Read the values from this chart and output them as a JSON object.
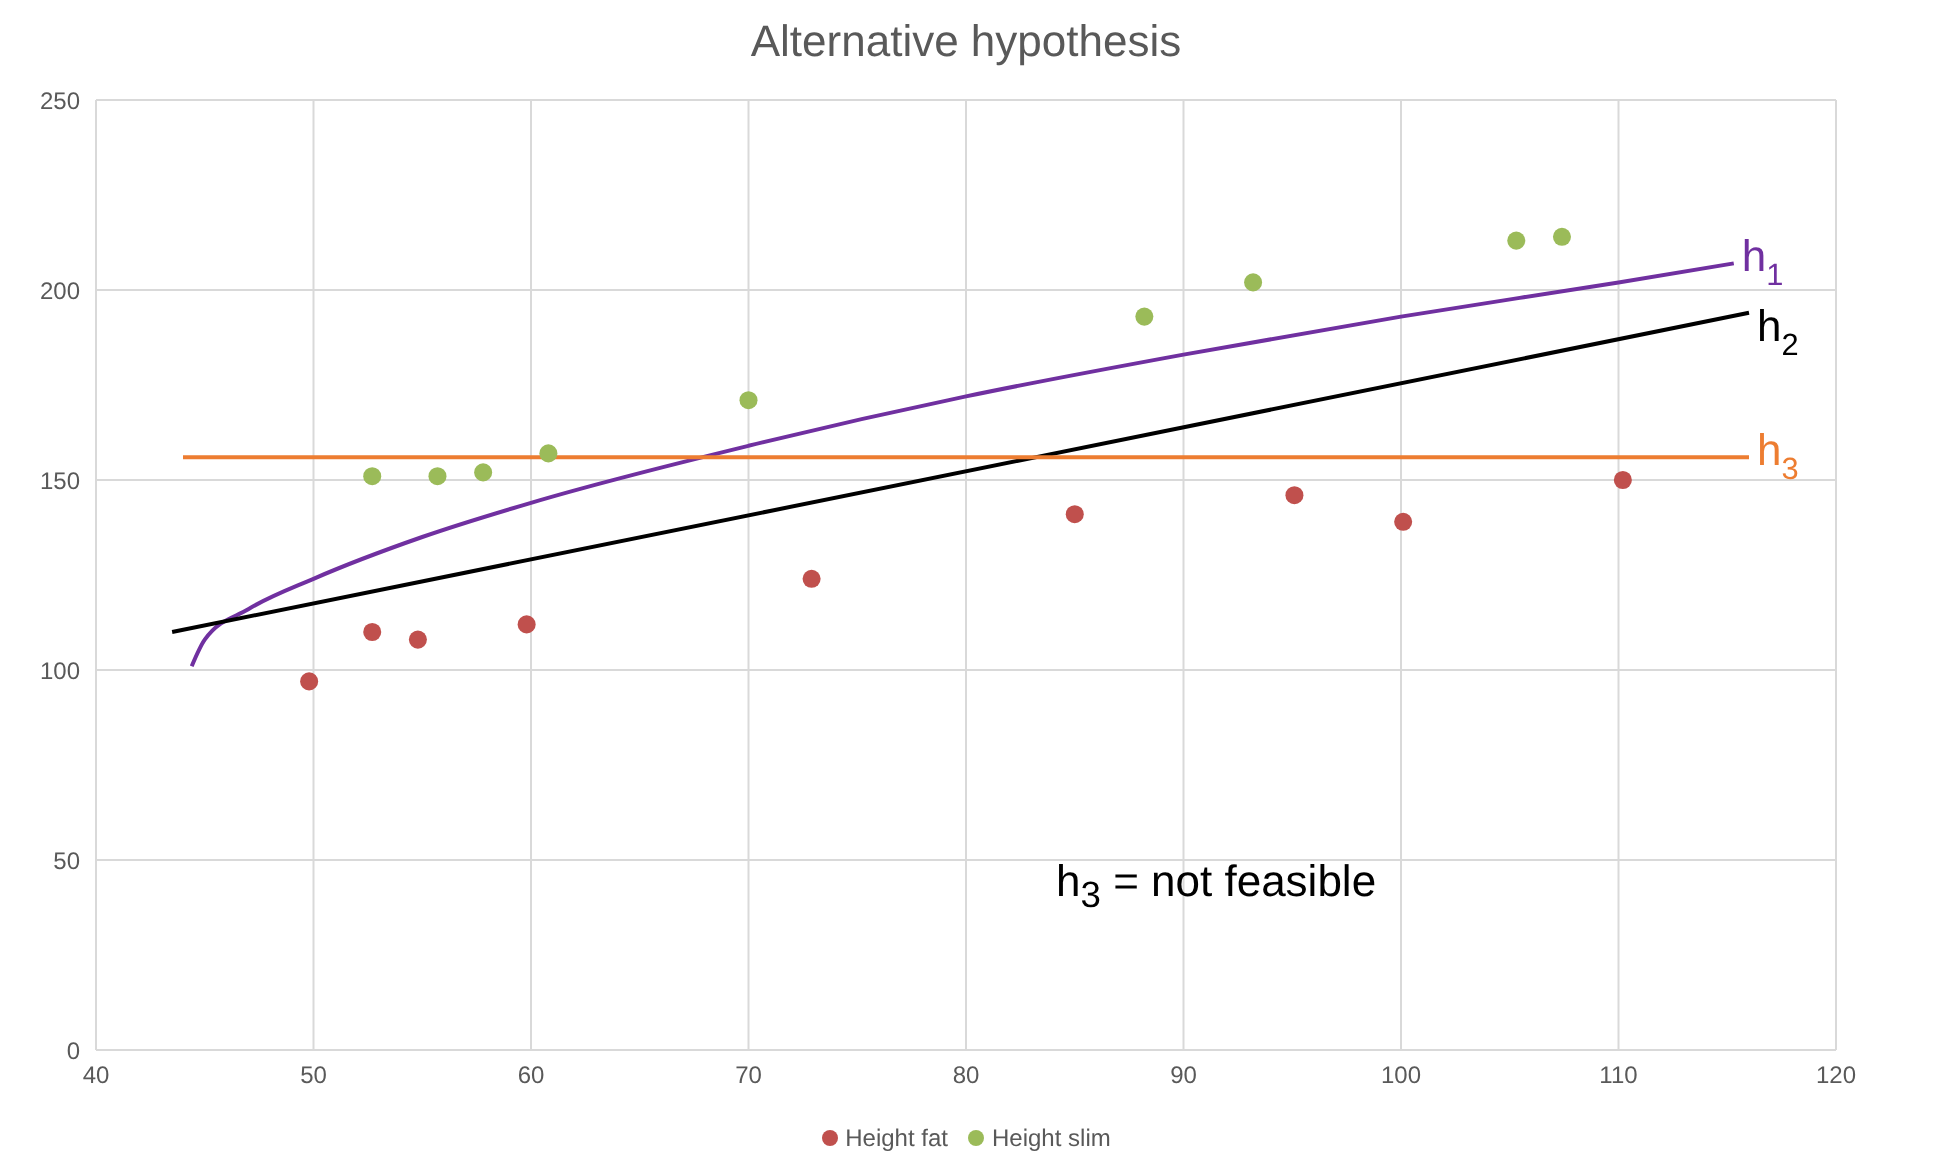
{
  "chart_data": {
    "type": "scatter",
    "title": "Alternative hypothesis",
    "xlim": [
      40,
      120
    ],
    "xticks": [
      40,
      50,
      60,
      70,
      80,
      90,
      100,
      110,
      120
    ],
    "ylim": [
      0,
      250
    ],
    "yticks": [
      0,
      50,
      100,
      150,
      200,
      250
    ],
    "grid": true,
    "legend": "bottom",
    "marker": "circle",
    "series": [
      {
        "name": "Height fat",
        "color": "#c0504d",
        "x": [
          49.8,
          52.7,
          54.8,
          59.8,
          72.9,
          85,
          95.1,
          100.1,
          110.2
        ],
        "values": [
          97,
          110,
          108,
          112,
          124,
          141,
          146,
          139,
          150
        ]
      },
      {
        "name": "Height slim",
        "color": "#9bbb59",
        "x": [
          52.7,
          55.7,
          57.8,
          60.8,
          70,
          88.2,
          93.2,
          105.3,
          107.4
        ],
        "values": [
          151,
          151,
          152,
          157,
          171,
          193,
          202,
          213,
          214
        ]
      },
      {
        "type": "line",
        "name": "h$_{1}$",
        "marker": "none",
        "color": "#7030a0",
        "x": [
          44.4,
          45,
          47,
          50,
          55,
          60,
          70,
          80,
          90,
          100,
          110,
          115.3
        ],
        "values": [
          101,
          108,
          116,
          124,
          135,
          144,
          159,
          172,
          183,
          193,
          202,
          207
        ]
      },
      {
        "type": "line",
        "name": "h$_{2}$",
        "marker": "none",
        "color": "#000000",
        "x": [
          43.5,
          116
        ],
        "values": [
          110,
          194
        ]
      },
      {
        "type": "line",
        "name": "h$_{3}$",
        "marker": "none",
        "color": "#ed7d31",
        "x": [
          44,
          116
        ],
        "values": [
          156,
          156
        ]
      }
    ],
    "annotations": [
      "h$_{3}$ = not feasible"
    ]
  }
}
